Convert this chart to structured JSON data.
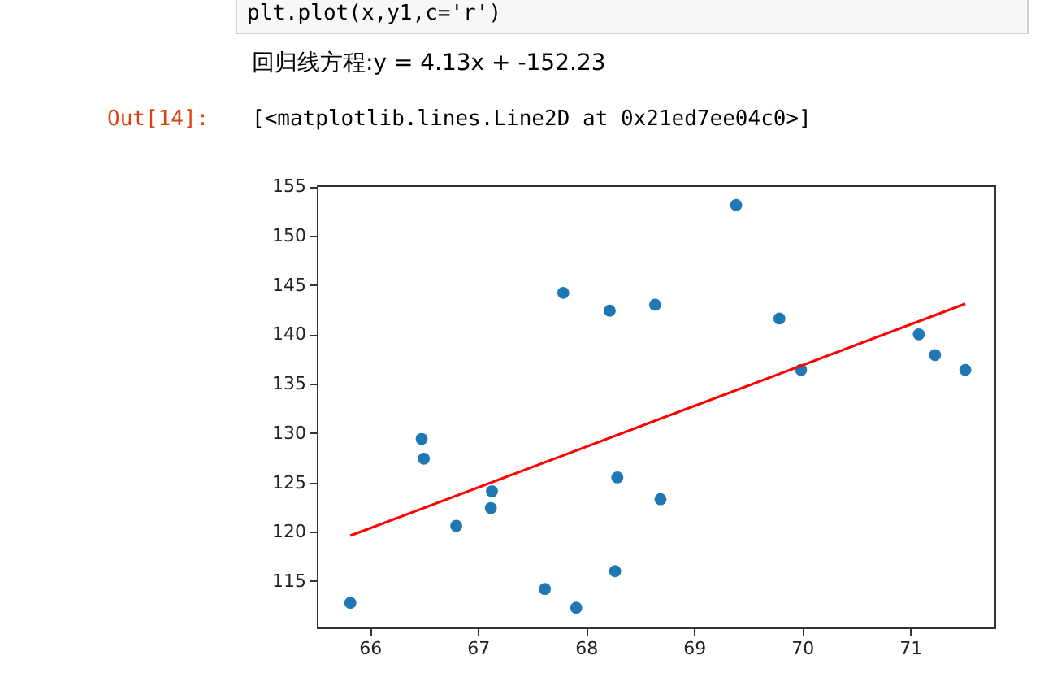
{
  "chart_data": {
    "type": "scatter",
    "annotations": [
      "plt.plot(x,y1,c='r')",
      "回归线方程:y = 4.13x + -152.23",
      "Out[14]:",
      "[<matplotlib.lines.Line2D at 0x21ed7ee04c0>]"
    ],
    "series": [
      {
        "color": "#1f77b4",
        "marker": "circle",
        "x": [
          67.79,
          68.22,
          66.48,
          66.5,
          69.39,
          68.64,
          69.79,
          69.99,
          71.08,
          71.23,
          71.51,
          65.82,
          66.8,
          67.13,
          67.12,
          67.62,
          67.91,
          68.27,
          68.29,
          68.69
        ],
        "values": [
          144.2,
          142.4,
          129.4,
          127.4,
          153.1,
          143.0,
          141.6,
          136.4,
          140.0,
          137.9,
          136.4,
          112.8,
          120.6,
          124.1,
          122.4,
          114.2,
          112.3,
          116.0,
          125.5,
          123.3
        ]
      },
      {
        "type": "line",
        "color": "#ff0000",
        "x": [
          65.82,
          71.51
        ],
        "values": [
          119.6,
          143.1
        ]
      }
    ],
    "xlim": [
      65.51,
      71.78
    ],
    "xticks": [
      66,
      67,
      68,
      69,
      70,
      71
    ],
    "ylim": [
      110.3,
      155.1
    ],
    "yticks": [
      115,
      120,
      125,
      130,
      135,
      140,
      145,
      150,
      155
    ],
    "grid": false
  }
}
